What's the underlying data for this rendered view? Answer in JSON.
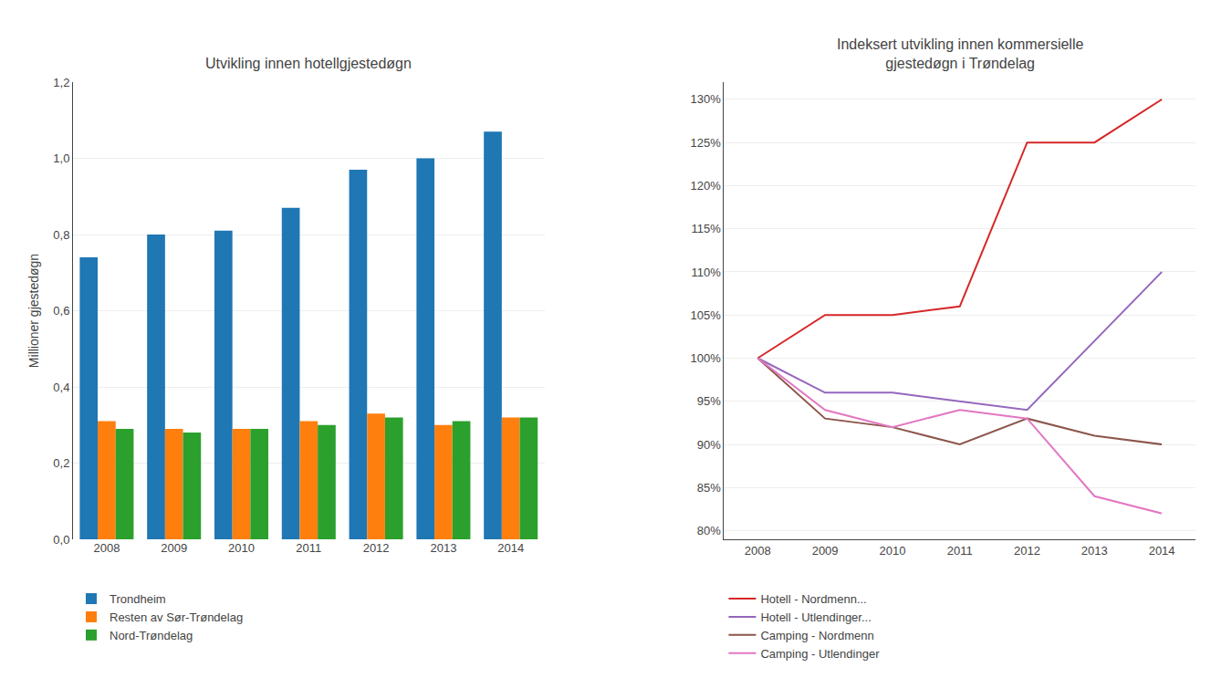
{
  "chart_data": [
    {
      "type": "bar",
      "title": "Utvikling innen hotellgjestedøgn",
      "ylabel": "Millioner gjestedøgn",
      "categories": [
        "2008",
        "2009",
        "2010",
        "2011",
        "2012",
        "2013",
        "2014"
      ],
      "series": [
        {
          "name": "Trondheim",
          "values": [
            0.74,
            0.8,
            0.81,
            0.87,
            0.97,
            1.0,
            1.07
          ]
        },
        {
          "name": "Resten av Sør-Trøndelag",
          "values": [
            0.31,
            0.29,
            0.29,
            0.31,
            0.33,
            0.3,
            0.32
          ]
        },
        {
          "name": "Nord-Trøndelag",
          "values": [
            0.29,
            0.28,
            0.29,
            0.3,
            0.32,
            0.31,
            0.32
          ]
        }
      ],
      "ylim": [
        0,
        1.2
      ],
      "yticks": [
        {
          "value": 0.0,
          "label": "0,0"
        },
        {
          "value": 0.2,
          "label": "0,2"
        },
        {
          "value": 0.4,
          "label": "0,4"
        },
        {
          "value": 0.6,
          "label": "0,6"
        },
        {
          "value": 0.8,
          "label": "0,8"
        },
        {
          "value": 1.0,
          "label": "1,0"
        },
        {
          "value": 1.2,
          "label": "1,2"
        }
      ],
      "grid": true,
      "legend": "bottom"
    },
    {
      "type": "line",
      "title": "Indeksert utvikling innen kommersielle\ngjestedøgn i Trøndelag",
      "x": [
        2008,
        2009,
        2010,
        2011,
        2012,
        2013,
        2014
      ],
      "series": [
        {
          "name": "Hotell - Nordmenn...",
          "values": [
            100,
            105,
            105,
            106,
            125,
            125,
            130
          ]
        },
        {
          "name": "Hotell - Utlendinger...",
          "values": [
            100,
            96,
            96,
            95,
            94,
            102,
            110
          ]
        },
        {
          "name": "Camping - Nordmenn",
          "values": [
            100,
            93,
            92,
            90,
            93,
            91,
            90
          ]
        },
        {
          "name": "Camping - Utlendinger",
          "values": [
            100,
            94,
            92,
            94,
            93,
            84,
            82
          ]
        }
      ],
      "xlim": [
        2007.5,
        2014.5
      ],
      "xticks": [
        2008,
        2009,
        2010,
        2011,
        2012,
        2013,
        2014
      ],
      "ylim": [
        79,
        132
      ],
      "yticks": [
        {
          "value": 80,
          "label": "80%"
        },
        {
          "value": 85,
          "label": "85%"
        },
        {
          "value": 90,
          "label": "90%"
        },
        {
          "value": 95,
          "label": "95%"
        },
        {
          "value": 100,
          "label": "100%"
        },
        {
          "value": 105,
          "label": "105%"
        },
        {
          "value": 110,
          "label": "110%"
        },
        {
          "value": 115,
          "label": "115%"
        },
        {
          "value": 120,
          "label": "120%"
        },
        {
          "value": 125,
          "label": "125%"
        },
        {
          "value": 130,
          "label": "130%"
        }
      ],
      "grid": true,
      "legend": "bottom"
    }
  ]
}
